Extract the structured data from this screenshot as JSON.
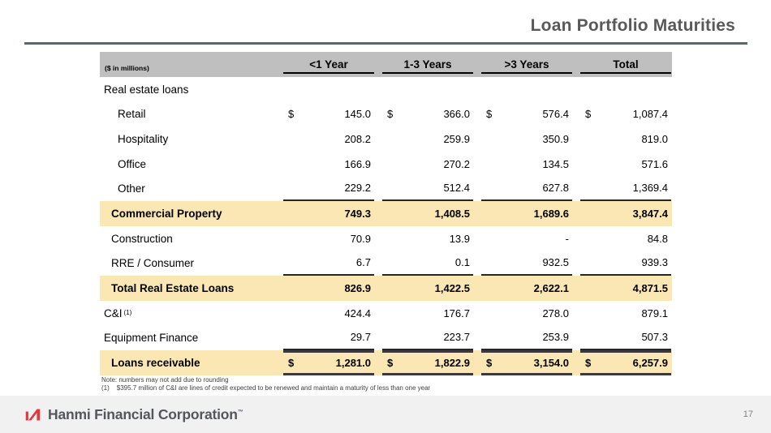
{
  "slide": {
    "title": "Loan Portfolio Maturities",
    "page_number": "17"
  },
  "table": {
    "units_label": "($ in millions)",
    "currency_symbol": "$",
    "columns": [
      "<1 Year",
      "1-3 Years",
      ">3 Years",
      "Total"
    ],
    "rows": [
      {
        "label": "Real estate loans",
        "indent": 0,
        "type": "section",
        "values": [
          "",
          "",
          "",
          ""
        ]
      },
      {
        "label": "Retail",
        "indent": 2,
        "type": "normal",
        "dollar": true,
        "values": [
          "145.0",
          "366.0",
          "576.4",
          "1,087.4"
        ]
      },
      {
        "label": "Hospitality",
        "indent": 2,
        "type": "normal",
        "values": [
          "208.2",
          "259.9",
          "350.9",
          "819.0"
        ]
      },
      {
        "label": "Office",
        "indent": 2,
        "type": "normal",
        "values": [
          "166.9",
          "270.2",
          "134.5",
          "571.6"
        ]
      },
      {
        "label": "Other",
        "indent": 2,
        "type": "normal",
        "underline": true,
        "values": [
          "229.2",
          "512.4",
          "627.8",
          "1,369.4"
        ]
      },
      {
        "label": "Commercial Property",
        "indent": 1,
        "type": "highlight",
        "values": [
          "749.3",
          "1,408.5",
          "1,689.6",
          "3,847.4"
        ]
      },
      {
        "label": "Construction",
        "indent": 1,
        "type": "normal",
        "values": [
          "70.9",
          "13.9",
          "-",
          "84.8"
        ]
      },
      {
        "label": "RRE / Consumer",
        "indent": 1,
        "type": "normal",
        "underline": true,
        "values": [
          "6.7",
          "0.1",
          "932.5",
          "939.3"
        ]
      },
      {
        "label": "Total Real Estate Loans",
        "indent": 1,
        "type": "highlight",
        "values": [
          "826.9",
          "1,422.5",
          "2,622.1",
          "4,871.5"
        ]
      },
      {
        "label": "C&I",
        "sup": "(1)",
        "indent": 0,
        "type": "normal",
        "values": [
          "424.4",
          "176.7",
          "278.0",
          "879.1"
        ]
      },
      {
        "label": "Equipment Finance",
        "indent": 0,
        "type": "normal",
        "underline": true,
        "values": [
          "29.7",
          "223.7",
          "253.9",
          "507.3"
        ]
      },
      {
        "label": "Loans receivable",
        "indent": 1,
        "type": "total",
        "dollar": true,
        "values": [
          "1,281.0",
          "1,822.9",
          "3,154.0",
          "6,257.9"
        ]
      }
    ]
  },
  "footnotes": {
    "note": "Note: numbers may not add due to rounding",
    "fn1_label": "(1)",
    "fn1_text": "$395.7 million of C&I are lines of credit expected to be renewed and maintain a maturity of less than one year"
  },
  "footer": {
    "brand": "Hanmi Financial Corporation",
    "trademark": "™"
  },
  "colors": {
    "title_gray": "#595959",
    "rule_slate": "#5B6670",
    "header_gray": "#BFBFBF",
    "highlight_cream": "#FAE7B4",
    "border_dark": "#3A3A3A",
    "footer_bg": "#F1F1F2",
    "logo_red": "#E0383B",
    "brand_gray": "#54565A"
  }
}
